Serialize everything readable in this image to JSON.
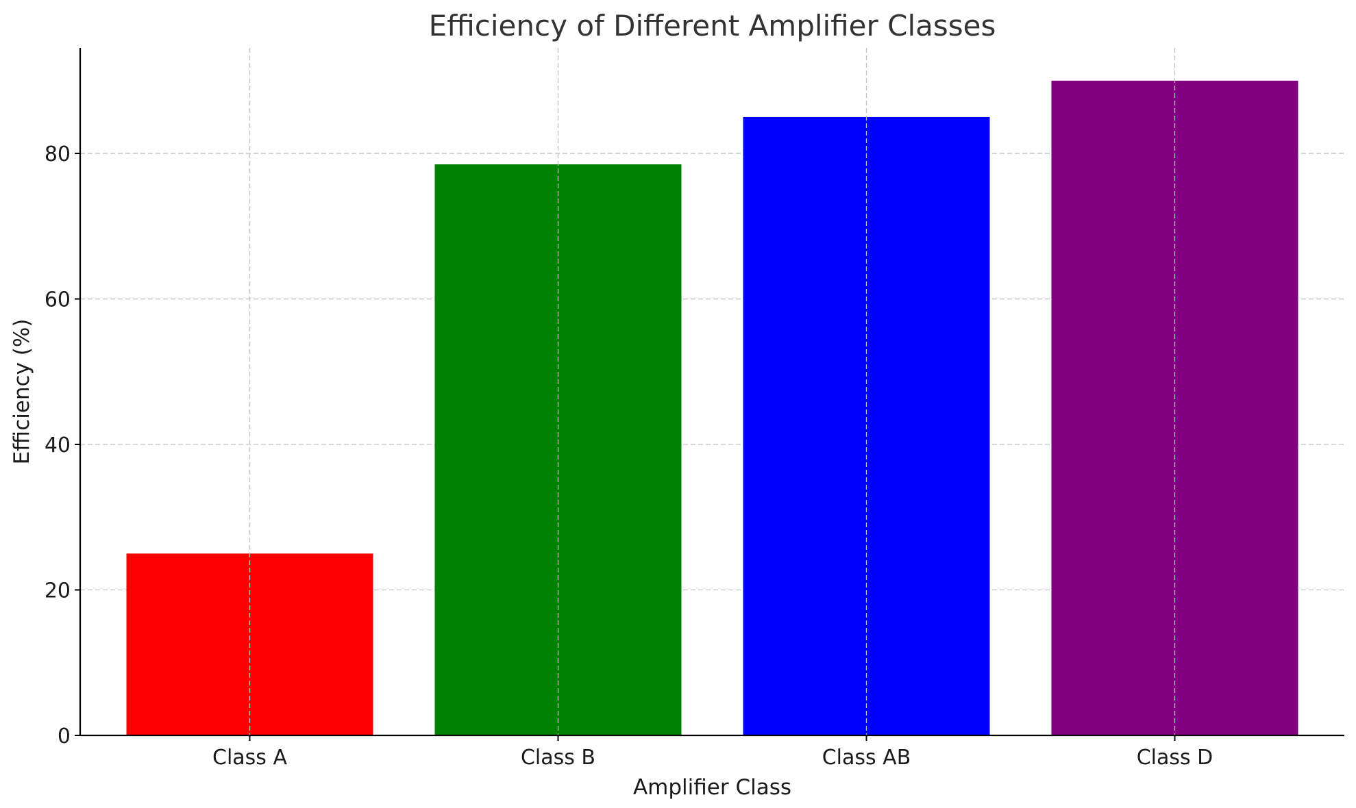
{
  "chart_data": {
    "type": "bar",
    "title": "Efficiency of Different Amplifier Classes",
    "xlabel": "Amplifier Class",
    "ylabel": "Efficiency (%)",
    "categories": [
      "Class A",
      "Class B",
      "Class AB",
      "Class D"
    ],
    "values": [
      25,
      78.5,
      85,
      90
    ],
    "colors": [
      "#ff0000",
      "#008000",
      "#0000ff",
      "#800080"
    ],
    "ylim": [
      0,
      94.5
    ],
    "yticks": [
      0,
      20,
      40,
      60,
      80
    ],
    "grid": true,
    "legend": "none"
  }
}
